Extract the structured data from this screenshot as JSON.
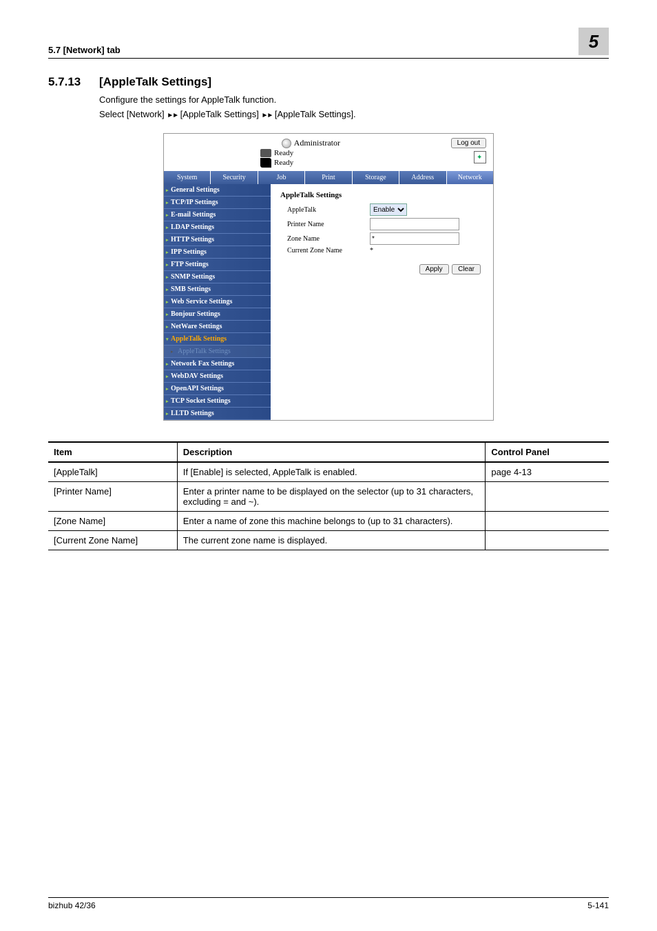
{
  "header": {
    "left": "5.7        [Network] tab",
    "chapter": "5"
  },
  "section": {
    "number": "5.7.13",
    "title": "[AppleTalk Settings]",
    "p1": "Configure the settings for AppleTalk function.",
    "p2_pre": "Select [Network] ",
    "p2_mid": " [AppleTalk Settings] ",
    "p2_post": " [AppleTalk Settings]."
  },
  "screenshot": {
    "admin_label": "Administrator",
    "logout": "Log out",
    "ready": "Ready",
    "tabs": [
      "System",
      "Security",
      "Job",
      "Print",
      "Storage",
      "Address",
      "Network"
    ],
    "active_tab_index": 6,
    "sidebar": [
      {
        "label": "General Settings"
      },
      {
        "label": "TCP/IP Settings"
      },
      {
        "label": "E-mail Settings"
      },
      {
        "label": "LDAP Settings"
      },
      {
        "label": "HTTP Settings"
      },
      {
        "label": "IPP Settings"
      },
      {
        "label": "FTP Settings"
      },
      {
        "label": "SNMP Settings"
      },
      {
        "label": "SMB Settings"
      },
      {
        "label": "Web Service Settings"
      },
      {
        "label": "Bonjour Settings"
      },
      {
        "label": "NetWare Settings"
      },
      {
        "label": "AppleTalk Settings",
        "expanded": true,
        "link": true
      },
      {
        "label": "AppleTalk Settings",
        "child": true
      },
      {
        "label": "Network Fax Settings"
      },
      {
        "label": "WebDAV Settings"
      },
      {
        "label": "OpenAPI Settings"
      },
      {
        "label": "TCP Socket Settings"
      },
      {
        "label": "LLTD Settings"
      }
    ],
    "panel_title": "AppleTalk Settings",
    "fields": {
      "appletalk_label": "AppleTalk",
      "appletalk_value": "Enable",
      "printer_label": "Printer Name",
      "printer_value": "",
      "zone_label": "Zone Name",
      "zone_value": "*",
      "current_label": "Current Zone Name",
      "current_value": "*"
    },
    "apply_btn": "Apply",
    "clear_btn": "Clear"
  },
  "table": {
    "headers": [
      "Item",
      "Description",
      "Control Panel"
    ],
    "rows": [
      [
        "[AppleTalk]",
        "If [Enable] is selected, AppleTalk is enabled.",
        "page 4-13"
      ],
      [
        "[Printer Name]",
        "Enter a printer name to be displayed on the selector (up to 31 characters, excluding = and ~).",
        ""
      ],
      [
        "[Zone Name]",
        "Enter a name of zone this machine belongs to (up to 31 characters).",
        ""
      ],
      [
        "[Current Zone Name]",
        "The current zone name is displayed.",
        ""
      ]
    ]
  },
  "footer": {
    "left": "bizhub 42/36",
    "right": "5-141"
  }
}
